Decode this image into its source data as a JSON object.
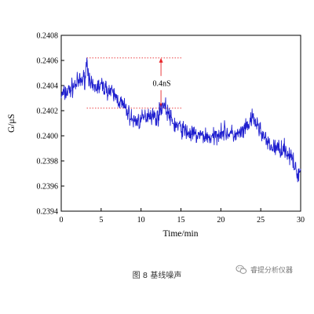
{
  "chart_data": {
    "type": "line",
    "title": "",
    "xlabel": "Time/min",
    "ylabel": "G/μS",
    "xlim": [
      0,
      30
    ],
    "ylim": [
      0.2394,
      0.2408
    ],
    "xticks": [
      "0",
      "5",
      "10",
      "15",
      "20",
      "25",
      "30"
    ],
    "yticks": [
      "0.2394",
      "0.2396",
      "0.2398",
      "0.2400",
      "0.2402",
      "0.2404",
      "0.2406",
      "0.2408"
    ],
    "grid": false,
    "line_color": "#1f1fcf",
    "annotation": {
      "label": "0.4nS",
      "upper_value": 0.24062,
      "lower_value": 0.24022,
      "x_start": 3.2,
      "x_end": 15.2,
      "arrow_x": 12.5,
      "color": "#e8262a"
    },
    "trend": {
      "x": [
        0,
        1,
        2,
        3,
        3.2,
        3.6,
        4,
        5,
        6,
        7,
        8,
        9,
        10,
        11,
        12,
        12.8,
        14,
        15,
        16,
        17,
        18,
        19,
        20,
        21,
        22,
        23,
        24,
        25,
        26,
        27,
        28,
        29,
        29.5,
        30
      ],
      "y": [
        0.24032,
        0.24036,
        0.24042,
        0.24046,
        0.24062,
        0.2404,
        0.24038,
        0.2404,
        0.24036,
        0.2403,
        0.24022,
        0.24012,
        0.24012,
        0.24018,
        0.24014,
        0.24026,
        0.2401,
        0.24006,
        0.24002,
        0.24,
        0.24,
        0.23998,
        0.24004,
        0.24002,
        0.24,
        0.24004,
        0.24014,
        0.24004,
        0.23992,
        0.2399,
        0.2399,
        0.2398,
        0.2397,
        0.23972
      ]
    },
    "noise_amplitude": 5e-05,
    "samples": 720
  },
  "caption": "图 8  基线噪声",
  "watermark": "睿提分析仪器"
}
